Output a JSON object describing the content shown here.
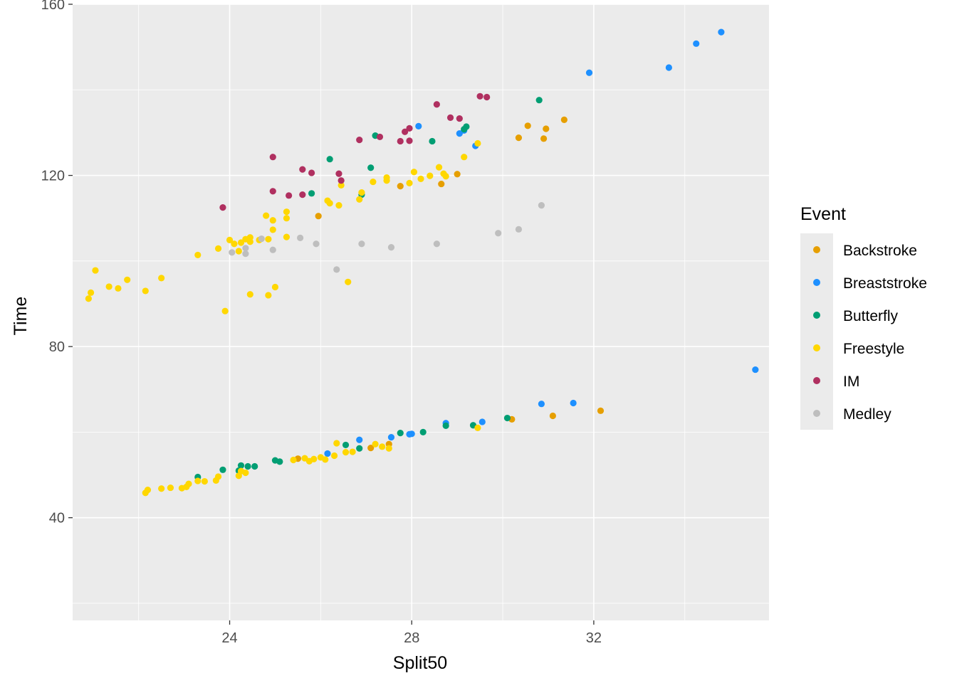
{
  "chart_data": {
    "type": "scatter",
    "title": "",
    "xlabel": "Split50",
    "ylabel": "Time",
    "xlim": [
      20.55,
      35.85
    ],
    "ylim": [
      16,
      160
    ],
    "x_ticks": [
      24,
      28,
      32
    ],
    "y_ticks": [
      40,
      80,
      120,
      160
    ],
    "x_tick_labels": [
      "24",
      "28",
      "32"
    ],
    "y_tick_labels": [
      "40",
      "80",
      "120",
      "160"
    ],
    "grid": true,
    "legend": {
      "title": "Event",
      "placement": "right"
    },
    "series": [
      {
        "name": "Backstroke",
        "color": "#E69F00",
        "points": [
          [
            25.5,
            53.8
          ],
          [
            27.1,
            56.3
          ],
          [
            27.5,
            57.2
          ],
          [
            30.2,
            63.0
          ],
          [
            31.1,
            63.8
          ],
          [
            32.15,
            65.0
          ],
          [
            25.95,
            110.5
          ],
          [
            27.75,
            117.5
          ],
          [
            28.65,
            118.0
          ],
          [
            29.0,
            120.3
          ],
          [
            30.35,
            128.8
          ],
          [
            30.9,
            128.6
          ],
          [
            30.55,
            131.6
          ],
          [
            30.95,
            130.9
          ],
          [
            31.35,
            133.0
          ]
        ]
      },
      {
        "name": "Breaststroke",
        "color": "#1E90FF",
        "points": [
          [
            26.15,
            55.0
          ],
          [
            26.85,
            58.2
          ],
          [
            27.55,
            58.8
          ],
          [
            27.95,
            59.5
          ],
          [
            28.0,
            59.6
          ],
          [
            28.75,
            62.1
          ],
          [
            29.55,
            62.4
          ],
          [
            30.85,
            66.6
          ],
          [
            31.55,
            66.8
          ],
          [
            35.55,
            74.6
          ],
          [
            28.15,
            131.5
          ],
          [
            29.05,
            129.8
          ],
          [
            29.15,
            130.5
          ],
          [
            29.4,
            126.9
          ],
          [
            31.9,
            144.0
          ],
          [
            33.65,
            145.2
          ],
          [
            34.25,
            150.8
          ],
          [
            34.8,
            153.5
          ]
        ]
      },
      {
        "name": "Butterfly",
        "color": "#009E73",
        "points": [
          [
            23.3,
            49.5
          ],
          [
            23.85,
            51.2
          ],
          [
            24.2,
            51.0
          ],
          [
            24.25,
            52.2
          ],
          [
            24.4,
            52.0
          ],
          [
            24.55,
            52.0
          ],
          [
            25.0,
            53.4
          ],
          [
            25.1,
            53.1
          ],
          [
            26.55,
            57.0
          ],
          [
            26.85,
            56.2
          ],
          [
            27.75,
            59.8
          ],
          [
            28.25,
            60.0
          ],
          [
            28.75,
            61.5
          ],
          [
            29.35,
            61.6
          ],
          [
            30.1,
            63.3
          ],
          [
            25.8,
            115.8
          ],
          [
            26.2,
            123.8
          ],
          [
            26.9,
            115.5
          ],
          [
            27.1,
            121.8
          ],
          [
            27.2,
            129.3
          ],
          [
            28.45,
            128.0
          ],
          [
            29.15,
            130.8
          ],
          [
            29.2,
            131.4
          ],
          [
            30.8,
            137.6
          ]
        ]
      },
      {
        "name": "Freestyle",
        "color": "#FFD700",
        "points": [
          [
            22.15,
            45.8
          ],
          [
            22.2,
            46.5
          ],
          [
            22.5,
            46.8
          ],
          [
            22.7,
            47.0
          ],
          [
            22.95,
            46.9
          ],
          [
            23.05,
            47.2
          ],
          [
            23.1,
            47.9
          ],
          [
            23.3,
            48.6
          ],
          [
            23.45,
            48.5
          ],
          [
            23.7,
            48.7
          ],
          [
            23.75,
            49.6
          ],
          [
            24.2,
            49.8
          ],
          [
            24.25,
            50.9
          ],
          [
            24.35,
            50.5
          ],
          [
            25.4,
            53.5
          ],
          [
            25.65,
            53.9
          ],
          [
            25.75,
            53.2
          ],
          [
            25.85,
            53.7
          ],
          [
            26.0,
            54.1
          ],
          [
            26.1,
            53.6
          ],
          [
            26.3,
            54.5
          ],
          [
            26.35,
            57.4
          ],
          [
            26.55,
            55.3
          ],
          [
            26.7,
            55.4
          ],
          [
            27.2,
            57.2
          ],
          [
            27.35,
            56.6
          ],
          [
            27.5,
            56.2
          ],
          [
            29.45,
            61.0
          ],
          [
            20.9,
            91.2
          ],
          [
            20.95,
            92.6
          ],
          [
            21.05,
            97.8
          ],
          [
            21.35,
            94.0
          ],
          [
            21.55,
            93.6
          ],
          [
            21.75,
            95.6
          ],
          [
            22.15,
            93.0
          ],
          [
            22.5,
            96.0
          ],
          [
            23.3,
            101.4
          ],
          [
            23.75,
            102.9
          ],
          [
            23.9,
            88.3
          ],
          [
            24.0,
            104.9
          ],
          [
            24.1,
            104.0
          ],
          [
            24.2,
            102.3
          ],
          [
            24.25,
            104.3
          ],
          [
            24.35,
            105.1
          ],
          [
            24.45,
            104.5
          ],
          [
            24.45,
            105.5
          ],
          [
            24.45,
            92.2
          ],
          [
            24.65,
            104.9
          ],
          [
            24.8,
            110.6
          ],
          [
            24.85,
            105.1
          ],
          [
            24.85,
            92.0
          ],
          [
            24.95,
            107.3
          ],
          [
            24.95,
            109.5
          ],
          [
            25.0,
            93.9
          ],
          [
            25.25,
            110.0
          ],
          [
            25.25,
            111.5
          ],
          [
            25.25,
            105.6
          ],
          [
            26.15,
            114.1
          ],
          [
            26.2,
            113.5
          ],
          [
            26.4,
            113.0
          ],
          [
            26.45,
            117.7
          ],
          [
            26.6,
            95.1
          ],
          [
            26.85,
            114.4
          ],
          [
            26.9,
            116.0
          ],
          [
            27.15,
            118.5
          ],
          [
            27.45,
            119.5
          ],
          [
            27.45,
            118.8
          ],
          [
            27.95,
            118.2
          ],
          [
            28.05,
            120.8
          ],
          [
            28.2,
            119.2
          ],
          [
            28.4,
            119.9
          ],
          [
            28.6,
            121.9
          ],
          [
            28.7,
            120.4
          ],
          [
            28.75,
            119.8
          ],
          [
            29.15,
            124.3
          ],
          [
            29.45,
            127.5
          ]
        ]
      },
      {
        "name": "IM",
        "color": "#B03060",
        "points": [
          [
            23.85,
            112.5
          ],
          [
            24.95,
            116.3
          ],
          [
            24.95,
            124.3
          ],
          [
            25.3,
            115.3
          ],
          [
            25.6,
            121.4
          ],
          [
            25.8,
            120.6
          ],
          [
            25.6,
            115.5
          ],
          [
            26.4,
            120.4
          ],
          [
            26.45,
            118.8
          ],
          [
            26.85,
            128.3
          ],
          [
            27.3,
            129.0
          ],
          [
            27.75,
            128.0
          ],
          [
            27.85,
            130.2
          ],
          [
            27.95,
            128.1
          ],
          [
            27.95,
            131.0
          ],
          [
            28.55,
            136.6
          ],
          [
            28.85,
            133.5
          ],
          [
            29.05,
            133.3
          ],
          [
            29.5,
            138.5
          ],
          [
            29.65,
            138.3
          ]
        ]
      },
      {
        "name": "Medley",
        "color": "#BEBEBE",
        "points": [
          [
            24.05,
            102.0
          ],
          [
            24.35,
            103.0
          ],
          [
            24.35,
            101.7
          ],
          [
            24.7,
            105.2
          ],
          [
            24.95,
            102.6
          ],
          [
            25.55,
            105.4
          ],
          [
            25.9,
            104.0
          ],
          [
            26.35,
            98.0
          ],
          [
            26.9,
            104.0
          ],
          [
            27.55,
            103.2
          ],
          [
            28.55,
            104.0
          ],
          [
            29.9,
            106.5
          ],
          [
            30.35,
            107.4
          ],
          [
            30.85,
            113.0
          ]
        ]
      }
    ]
  },
  "chart_text": {
    "xlabel": "Split50",
    "ylabel": "Time",
    "x_ticks": [
      "24",
      "28",
      "32"
    ],
    "y_ticks": [
      "40",
      "80",
      "120",
      "160"
    ],
    "legend_title": "Event",
    "legend_labels": [
      "Backstroke",
      "Breaststroke",
      "Butterfly",
      "Freestyle",
      "IM",
      "Medley"
    ]
  },
  "colors": {
    "panel_background": "#EBEBEB",
    "grid_major": "#FFFFFF",
    "tick_text": "#4D4D4D",
    "tick_mark": "#333333"
  }
}
